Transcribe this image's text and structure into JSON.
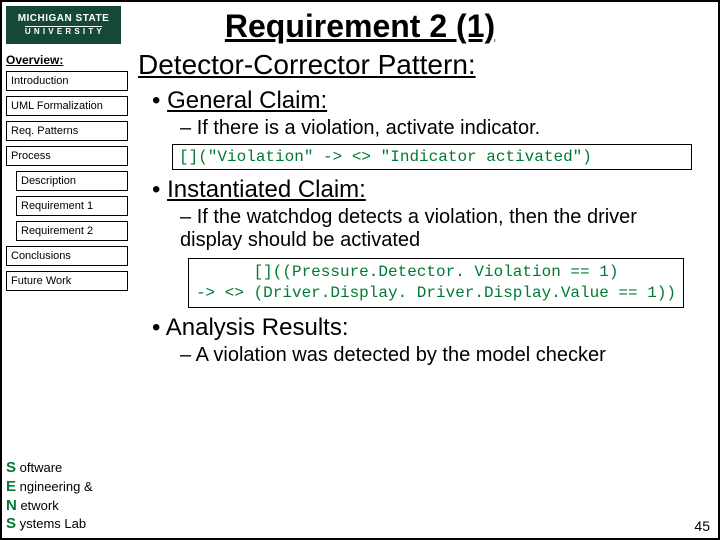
{
  "logo": {
    "line1": "MICHIGAN STATE",
    "line2": "U N I V E R S I T Y"
  },
  "title": "Requirement 2 (1)",
  "sidebar": {
    "header": "Overview:",
    "items": [
      {
        "label": "Introduction",
        "sub": false
      },
      {
        "label": "UML Formalization",
        "sub": false
      },
      {
        "label": "Req. Patterns",
        "sub": false
      },
      {
        "label": "Process",
        "sub": false
      },
      {
        "label": "Description",
        "sub": true
      },
      {
        "label": "Requirement 1",
        "sub": true
      },
      {
        "label": "Requirement 2",
        "sub": true
      },
      {
        "label": "Conclusions",
        "sub": false
      },
      {
        "label": "Future Work",
        "sub": false
      }
    ]
  },
  "lab": {
    "l1": "S",
    "t1": " oftware",
    "l2": "E",
    "t2": " ngineering &",
    "l3": "N",
    "t3": " etwork",
    "l4": "S",
    "t4": " ystems Lab"
  },
  "content": {
    "heading": "Detector-Corrector Pattern:",
    "general_label": "General Claim:",
    "general_sub": "If there is a violation, activate indicator.",
    "code1": "[](\"Violation\" -> <> \"Indicator activated\")",
    "inst_label": "Instantiated Claim:",
    "inst_sub": "If the watchdog detects a violation, then the driver display should be activated",
    "code2a": "[]((Pressure.Detector. Violation == 1)",
    "code2b": "-> <> (Driver.Display. Driver.Display.Value == 1))",
    "analysis_label": "Analysis Results:",
    "analysis_sub": "A violation was detected by the model checker"
  },
  "pagenum": "45",
  "colors": {
    "msu_green": "#16483a",
    "code_green": "#007a33"
  }
}
